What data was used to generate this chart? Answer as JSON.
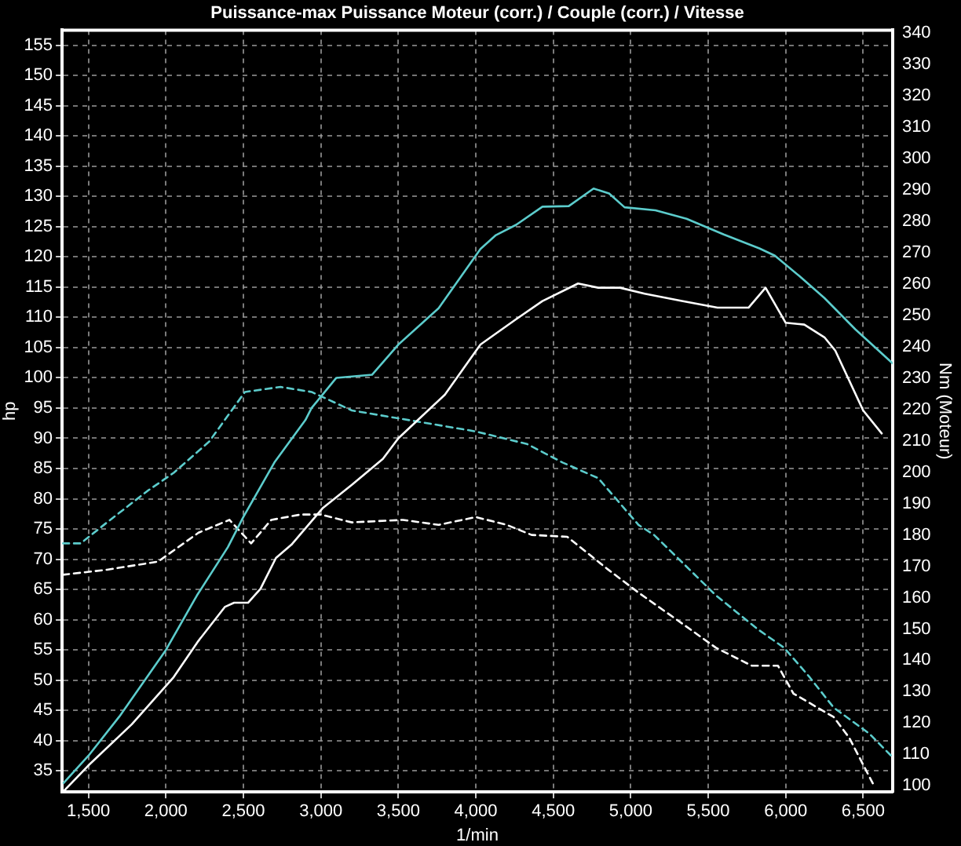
{
  "chart_data": {
    "type": "line",
    "title": "Puissance-max Puissance Moteur (corr.) / Couple (corr.) / Vitesse",
    "xlabel": "1/min",
    "ylabel": "hp",
    "y2label": "Nm (Moteur)",
    "xlim": [
      1330,
      6690
    ],
    "xticks": [
      {
        "value": 1500,
        "label": "1,500"
      },
      {
        "value": 2000,
        "label": "2,000"
      },
      {
        "value": 2500,
        "label": "2,500"
      },
      {
        "value": 3000,
        "label": "3,000"
      },
      {
        "value": 3500,
        "label": "3,500"
      },
      {
        "value": 4000,
        "label": "4,000"
      },
      {
        "value": 4500,
        "label": "4,500"
      },
      {
        "value": 5000,
        "label": "5,000"
      },
      {
        "value": 5500,
        "label": "5,500"
      },
      {
        "value": 6000,
        "label": "6,000"
      },
      {
        "value": 6500,
        "label": "6,500"
      }
    ],
    "ylim": [
      31.5,
      157.5
    ],
    "yticks": [
      35,
      40,
      45,
      50,
      55,
      60,
      65,
      70,
      75,
      80,
      85,
      90,
      95,
      100,
      105,
      110,
      115,
      120,
      125,
      130,
      135,
      140,
      145,
      150,
      155
    ],
    "y2lim": [
      98,
      341
    ],
    "y2ticks": [
      100,
      110,
      120,
      130,
      140,
      150,
      160,
      170,
      180,
      190,
      200,
      210,
      220,
      230,
      240,
      250,
      260,
      270,
      280,
      290,
      300,
      310,
      320,
      330,
      340
    ],
    "grid": true,
    "legend": false,
    "marker": "none",
    "series": [
      {
        "color": "#5ccccc",
        "line_style": "solid",
        "x": [
          1340,
          1500,
          1700,
          2000,
          2200,
          2400,
          2500,
          2700,
          2900,
          2940,
          3100,
          3330,
          3500,
          3760,
          4030,
          4130,
          4260,
          4430,
          4600,
          4760,
          4860,
          4960,
          5160,
          5360,
          5600,
          5830,
          5930,
          6090,
          6250,
          6450,
          6690
        ],
        "values": [
          33,
          37.5,
          44,
          55,
          64,
          72,
          77,
          86,
          93,
          95,
          100,
          100.5,
          105.5,
          111.5,
          121.3,
          123.6,
          125.3,
          128.3,
          128.4,
          131.3,
          130.5,
          128.2,
          127.7,
          126.3,
          123.7,
          121.4,
          120.2,
          116.8,
          113.2,
          108,
          102.4
        ]
      },
      {
        "color": "#ffffff",
        "line_style": "solid",
        "x": [
          1335,
          1500,
          1780,
          2050,
          2210,
          2380,
          2440,
          2530,
          2610,
          2710,
          2810,
          3010,
          3200,
          3400,
          3500,
          3800,
          4030,
          4260,
          4430,
          4660,
          4790,
          4930,
          5090,
          5330,
          5560,
          5760,
          5870,
          6000,
          6120,
          6250,
          6320,
          6500,
          6620
        ],
        "values": [
          31.5,
          35.9,
          42.7,
          50.5,
          56.5,
          62.1,
          62.8,
          62.8,
          65.1,
          70.2,
          72.4,
          78.4,
          82.3,
          86.6,
          90,
          97.2,
          105.5,
          109.7,
          112.7,
          115.6,
          114.9,
          114.9,
          113.9,
          112.7,
          111.6,
          111.6,
          114.9,
          109.1,
          108.8,
          106.7,
          104.5,
          94.6,
          90.8
        ]
      },
      {
        "color": "#5ccccc",
        "line_style": "dashed",
        "axis": "y2",
        "x": [
          1335,
          1450,
          1620,
          1880,
          2050,
          2280,
          2510,
          2740,
          2940,
          3200,
          4000,
          4330,
          4560,
          4790,
          5050,
          5150,
          5310,
          5550,
          5820,
          5990,
          6150,
          6310,
          6540,
          6690
        ],
        "values": [
          177.3,
          177.3,
          184,
          194,
          199.8,
          209.8,
          225.6,
          227.2,
          225.6,
          219.7,
          213,
          209,
          203.1,
          198.1,
          183.2,
          180,
          172.3,
          160.7,
          149.9,
          144,
          134.9,
          124.9,
          116.6,
          109.1
        ]
      },
      {
        "color": "#ffffff",
        "line_style": "dashed",
        "axis": "y2",
        "x": [
          1335,
          1620,
          1950,
          2210,
          2410,
          2550,
          2680,
          2870,
          3000,
          3200,
          3530,
          3760,
          4000,
          4200,
          4360,
          4590,
          4850,
          5050,
          5310,
          5550,
          5780,
          5950,
          6050,
          6310,
          6410,
          6570
        ],
        "values": [
          167.3,
          168.9,
          171.5,
          180.7,
          184.8,
          177.3,
          184.8,
          186.5,
          186.5,
          184,
          184.8,
          183.2,
          185.7,
          183.2,
          180,
          179.4,
          169.1,
          161.6,
          152.5,
          144,
          138.3,
          138.3,
          129.4,
          121.9,
          115.3,
          100
        ]
      }
    ]
  }
}
